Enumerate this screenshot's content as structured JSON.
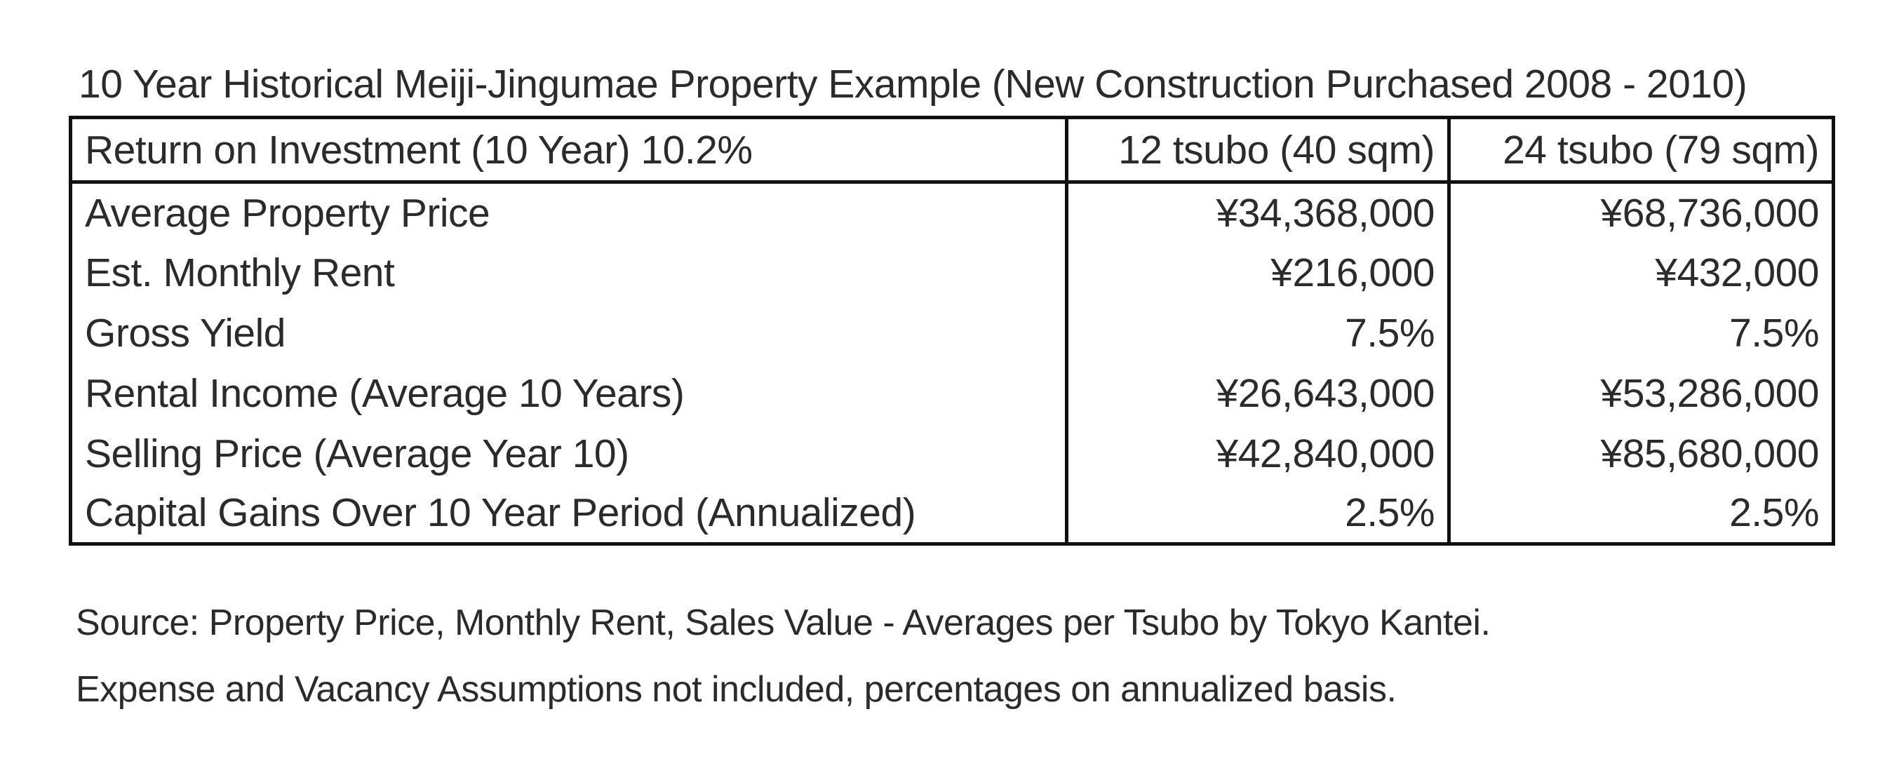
{
  "title": "10 Year Historical Meiji-Jingumae Property Example (New Construction Purchased 2008 - 2010)",
  "table": {
    "header": {
      "label": "Return on Investment (10 Year) 10.2%",
      "col_small": "12 tsubo (40 sqm)",
      "col_large": "24 tsubo (79 sqm)"
    },
    "rows": [
      {
        "label": "Average Property Price",
        "small": "¥34,368,000",
        "large": "¥68,736,000"
      },
      {
        "label": "Est. Monthly Rent",
        "small": "¥216,000",
        "large": "¥432,000"
      },
      {
        "label": "Gross Yield",
        "small": "7.5%",
        "large": "7.5%"
      },
      {
        "label": "Rental Income (Average 10 Years)",
        "small": "¥26,643,000",
        "large": "¥53,286,000"
      },
      {
        "label": "Selling Price (Average Year 10)",
        "small": "¥42,840,000",
        "large": "¥85,680,000"
      },
      {
        "label": "Capital Gains Over 10 Year Period (Annualized)",
        "small": "2.5%",
        "large": "2.5%"
      }
    ]
  },
  "footnotes": [
    "Source: Property Price, Monthly Rent, Sales Value - Averages per Tsubo by Tokyo Kantei.",
    "Expense and Vacancy Assumptions not included, percentages on annualized basis."
  ]
}
